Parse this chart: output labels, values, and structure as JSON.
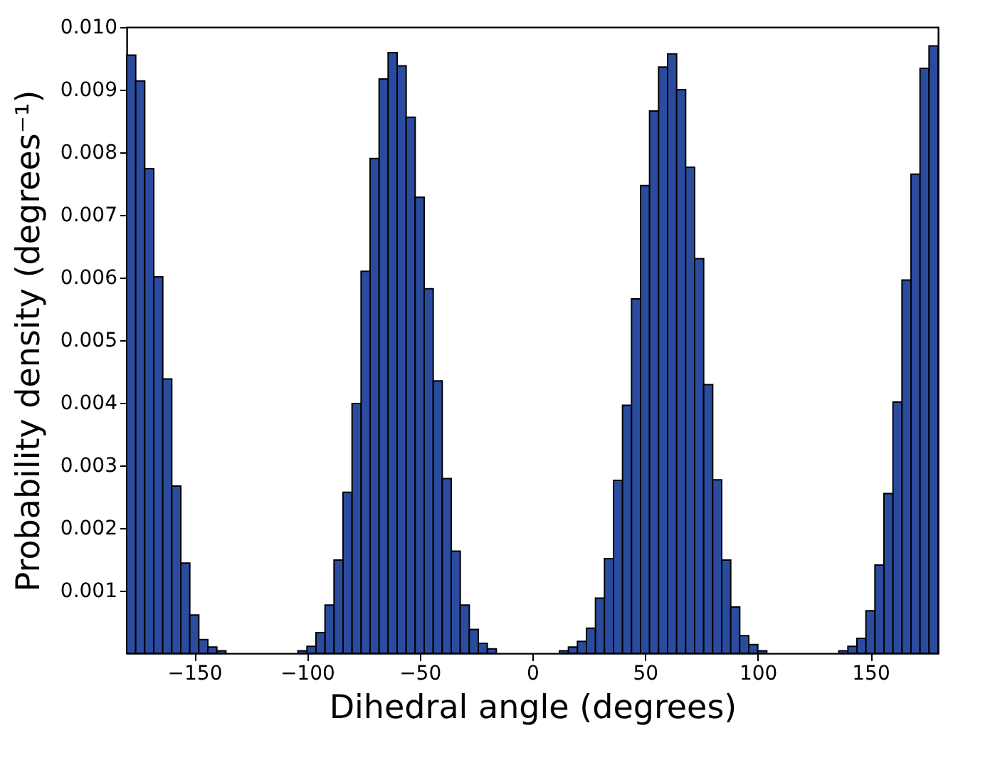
{
  "chart_data": {
    "type": "histogram",
    "xlabel": "Dihedral angle (degrees)",
    "ylabel": "Probability density (degrees⁻¹)",
    "bins": [
      -180,
      -176,
      -172,
      -168,
      -164,
      -160,
      -156,
      -152,
      -148,
      -144,
      -140,
      -136,
      -132,
      -128,
      -124,
      -120,
      -116,
      -112,
      -108,
      -104,
      -100,
      -96,
      -92,
      -88,
      -84,
      -80,
      -76,
      -72,
      -68,
      -64,
      -60,
      -56,
      -52,
      -48,
      -44,
      -40,
      -36,
      -32,
      -28,
      -24,
      -20,
      -16,
      -12,
      -8,
      -4,
      0,
      4,
      8,
      12,
      16,
      20,
      24,
      28,
      32,
      36,
      40,
      44,
      48,
      52,
      56,
      60,
      64,
      68,
      72,
      76,
      80,
      84,
      88,
      92,
      96,
      100,
      104,
      108,
      112,
      116,
      120,
      124,
      128,
      132,
      136,
      140,
      144,
      148,
      152,
      156,
      160,
      164,
      168,
      172,
      176,
      180
    ],
    "values": [
      0.00955,
      0.00914,
      0.00774,
      0.00601,
      0.00438,
      0.00267,
      0.00144,
      0.00061,
      0.00022,
      0.0001,
      4e-05,
      0,
      0,
      0,
      0,
      0,
      0,
      0,
      0,
      4e-05,
      0.00011,
      0.00033,
      0.00077,
      0.00149,
      0.00257,
      0.00399,
      0.0061,
      0.0079,
      0.00917,
      0.00959,
      0.00938,
      0.00856,
      0.00728,
      0.00582,
      0.00435,
      0.00279,
      0.00163,
      0.00077,
      0.00038,
      0.00016,
      7e-05,
      0,
      0,
      0,
      0,
      0,
      0,
      0,
      4e-05,
      0.0001,
      0.00019,
      0.0004,
      0.00088,
      0.00151,
      0.00276,
      0.00396,
      0.00566,
      0.00747,
      0.00866,
      0.00936,
      0.00957,
      0.009,
      0.00776,
      0.0063,
      0.00429,
      0.00277,
      0.00149,
      0.00074,
      0.00028,
      0.00014,
      4e-05,
      0,
      0,
      0,
      0,
      0,
      0,
      0,
      0,
      4e-05,
      0.00011,
      0.00024,
      0.00068,
      0.00141,
      0.00255,
      0.00401,
      0.00596,
      0.00765,
      0.00934,
      0.0097
    ],
    "color": "#2b4c9e",
    "xlim": [
      -180,
      180
    ],
    "xticks": [
      {
        "value": -150,
        "label": "−150"
      },
      {
        "value": -100,
        "label": "−100"
      },
      {
        "value": -50,
        "label": "−50"
      },
      0,
      50,
      100,
      150
    ],
    "ylim": [
      0,
      0.01
    ],
    "yticks": [
      0.001,
      0.002,
      0.003,
      0.004,
      0.005,
      0.006,
      0.007,
      0.008,
      0.009,
      {
        "value": 0.01,
        "label": "0.010"
      }
    ],
    "grid": false
  }
}
